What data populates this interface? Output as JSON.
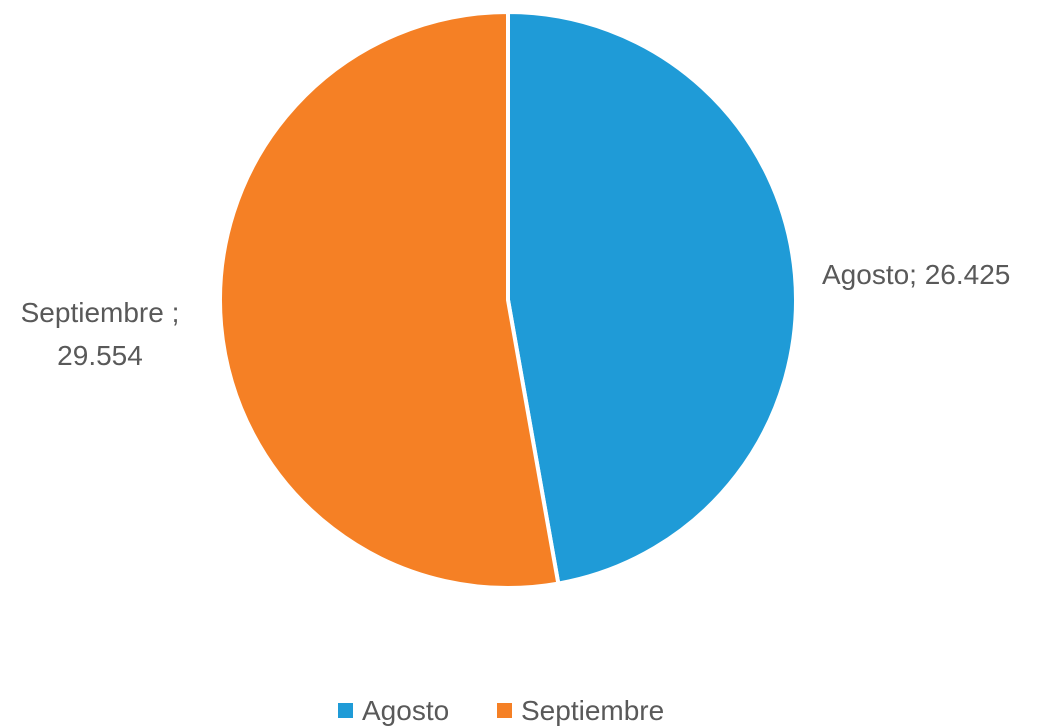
{
  "chart_data": {
    "type": "pie",
    "categories": [
      "Agosto",
      "Septiembre"
    ],
    "values": [
      26.425,
      29.554
    ],
    "colors": [
      "#1F9BD7",
      "#F58025"
    ],
    "data_labels": [
      "Agosto; 26.425",
      "Septiembre ; 29.554"
    ],
    "legend": {
      "position": "bottom",
      "entries": [
        "Agosto",
        "Septiembre"
      ]
    },
    "title": "",
    "start_angle_deg": 0,
    "direction": "clockwise"
  }
}
